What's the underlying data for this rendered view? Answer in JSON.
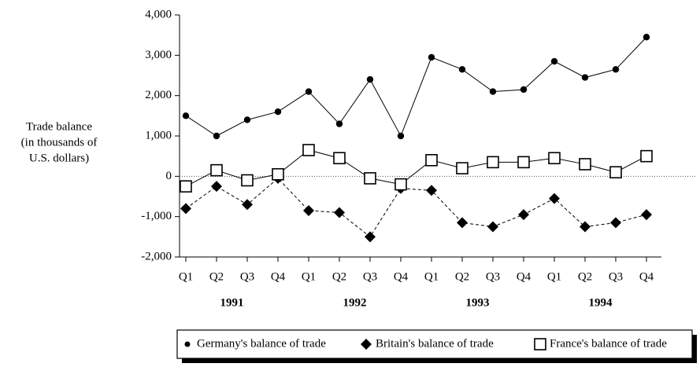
{
  "chart_data": {
    "type": "line",
    "y_label": [
      "Trade balance",
      "(in thousands of",
      "U.S. dollars)"
    ],
    "categories": [
      "Q1",
      "Q2",
      "Q3",
      "Q4",
      "Q1",
      "Q2",
      "Q3",
      "Q4",
      "Q1",
      "Q2",
      "Q3",
      "Q4",
      "Q1",
      "Q2",
      "Q3",
      "Q4"
    ],
    "groups": [
      "1991",
      "1992",
      "1993",
      "1994"
    ],
    "series": [
      {
        "name": "Germany's balance of trade",
        "color": "#000000",
        "marker": "circle",
        "dash": "solid",
        "values": [
          1500,
          1000,
          1400,
          1600,
          2100,
          1300,
          2400,
          1000,
          2950,
          2650,
          2100,
          2150,
          2850,
          2450,
          2650,
          3450
        ]
      },
      {
        "name": "Britain's balance of trade",
        "color": "#000000",
        "marker": "diamond",
        "dash": "dashed",
        "values": [
          -800,
          -250,
          -700,
          -50,
          -850,
          -900,
          -1500,
          -300,
          -350,
          -1150,
          -1250,
          -950,
          -550,
          -1250,
          -1150,
          -950
        ]
      },
      {
        "name": "France's balance of trade",
        "color": "#000000",
        "marker": "square",
        "dash": "solid",
        "values": [
          -250,
          150,
          -100,
          50,
          650,
          450,
          -50,
          -200,
          400,
          200,
          350,
          350,
          450,
          300,
          100,
          500
        ]
      }
    ],
    "ylim": [
      -2000,
      4000
    ],
    "yticks": [
      {
        "value": -2000,
        "label": "-2,000"
      },
      {
        "value": -1000,
        "label": "-1,000"
      },
      0,
      {
        "value": 1000,
        "label": "1,000"
      },
      {
        "value": 2000,
        "label": "2,000"
      },
      {
        "value": 3000,
        "label": "3,000"
      },
      {
        "value": 4000,
        "label": "4,000"
      }
    ],
    "zero_line": true,
    "legend": "bottom"
  }
}
